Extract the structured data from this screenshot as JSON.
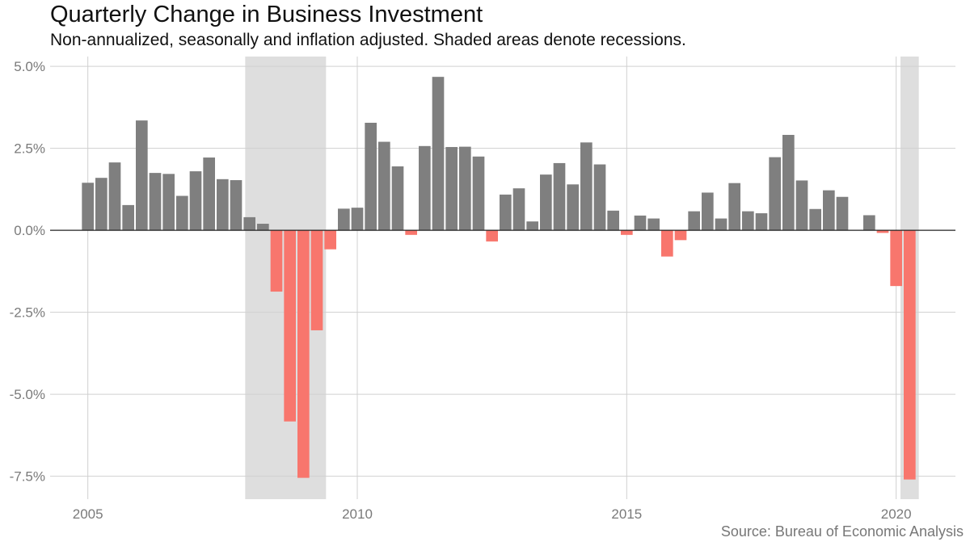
{
  "chart_data": {
    "type": "bar",
    "title": "Quarterly Change in Business Investment",
    "subtitle": "Non-annualized, seasonally and inflation adjusted. Shaded areas denote recessions.",
    "caption": "Source: Bureau of Economic Analysis",
    "xlabel": "",
    "ylabel": "",
    "x_start_quarter": "2005 Q1",
    "x_ticks": [
      2005,
      2010,
      2015,
      2020
    ],
    "x_tick_labels": [
      "2005",
      "2010",
      "2015",
      "2020"
    ],
    "y_ticks": [
      -7.5,
      -5.0,
      -2.5,
      0.0,
      2.5,
      5.0
    ],
    "y_tick_labels": [
      "-7.5%",
      "-5.0%",
      "-2.5%",
      "0.0%",
      "2.5%",
      "5.0%"
    ],
    "ylim": [
      -8.2,
      5.3
    ],
    "xlim": [
      2004.3,
      2021.1
    ],
    "grid": true,
    "recessions": [
      {
        "start": 2007.92,
        "end": 2009.42
      },
      {
        "start": 2020.08,
        "end": 2020.42
      }
    ],
    "colors": {
      "positive": "#7f7f7f",
      "negative": "#f8766d",
      "recession": "#dedede",
      "grid": "#d0d0d0",
      "zero_line": "#222222"
    },
    "values": [
      1.45,
      1.6,
      2.07,
      0.77,
      3.35,
      1.75,
      1.72,
      1.05,
      1.8,
      2.22,
      1.56,
      1.53,
      0.4,
      0.2,
      -1.87,
      -5.83,
      -7.55,
      -3.05,
      -0.58,
      0.66,
      0.69,
      3.28,
      2.7,
      1.95,
      -0.14,
      2.57,
      4.68,
      2.54,
      2.55,
      2.25,
      -0.34,
      1.09,
      1.28,
      0.27,
      1.7,
      2.05,
      1.4,
      2.68,
      2.01,
      0.6,
      -0.14,
      0.45,
      0.36,
      -0.8,
      -0.3,
      0.58,
      1.15,
      0.36,
      1.44,
      0.58,
      0.52,
      2.23,
      2.91,
      1.52,
      0.65,
      1.22,
      1.02,
      0.0,
      0.46,
      -0.08,
      -1.7,
      -7.6
    ]
  }
}
